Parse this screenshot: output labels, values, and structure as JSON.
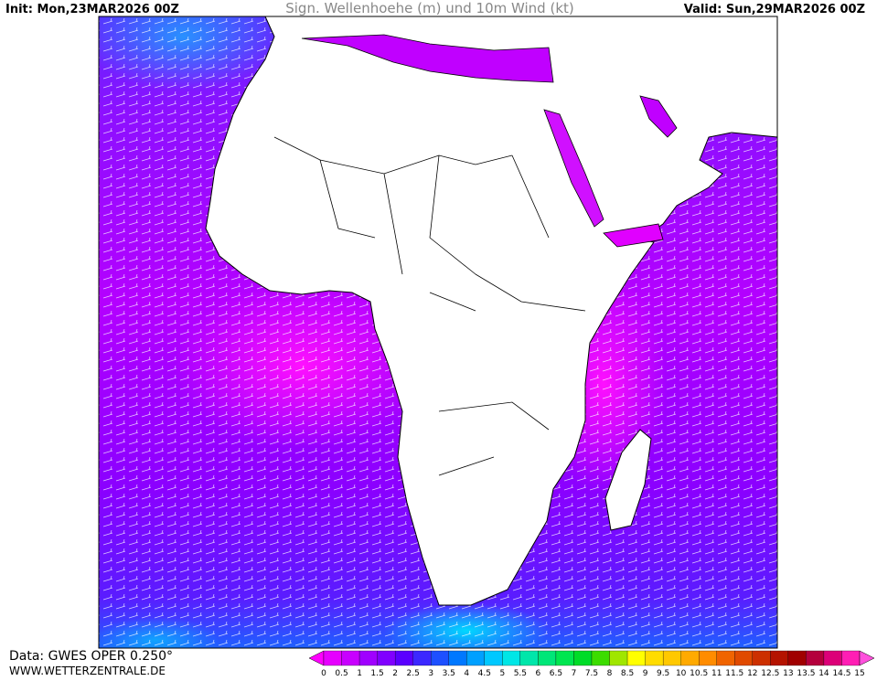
{
  "header": {
    "init": "Init: Mon,23MAR2026 00Z",
    "title": "Sign. Wellenhoehe (m) und 10m Wind (kt)",
    "valid": "Valid: Sun,29MAR2026 00Z"
  },
  "footer": {
    "source": "Data: GWES OPER 0.250°",
    "site": "WWW.WETTERZENTRALE.DE"
  },
  "legend": {
    "labels": [
      "0",
      "0.5",
      "1",
      "1.5",
      "2",
      "2.5",
      "3",
      "3.5",
      "4",
      "4.5",
      "5",
      "5.5",
      "6",
      "6.5",
      "7",
      "7.5",
      "8",
      "8.5",
      "9",
      "9.5",
      "10",
      "10.5",
      "11",
      "11.5",
      "12",
      "12.5",
      "13",
      "13.5",
      "14",
      "14.5",
      "15"
    ],
    "colors": [
      "#ff00ff",
      "#e600ff",
      "#c800ff",
      "#a000ff",
      "#8000ff",
      "#5a00ff",
      "#3c28ff",
      "#1e50ff",
      "#0078ff",
      "#00a0ff",
      "#00c8ff",
      "#00e6e6",
      "#00e6aa",
      "#00e678",
      "#00e650",
      "#00dc28",
      "#3cdc00",
      "#a0e600",
      "#ffff00",
      "#ffdc00",
      "#ffc800",
      "#ffaa00",
      "#ff8c00",
      "#f06400",
      "#e04a00",
      "#cc3000",
      "#b41400",
      "#a00000",
      "#b4003c",
      "#dc0078",
      "#ff1eb4",
      "#ff50dc"
    ]
  }
}
